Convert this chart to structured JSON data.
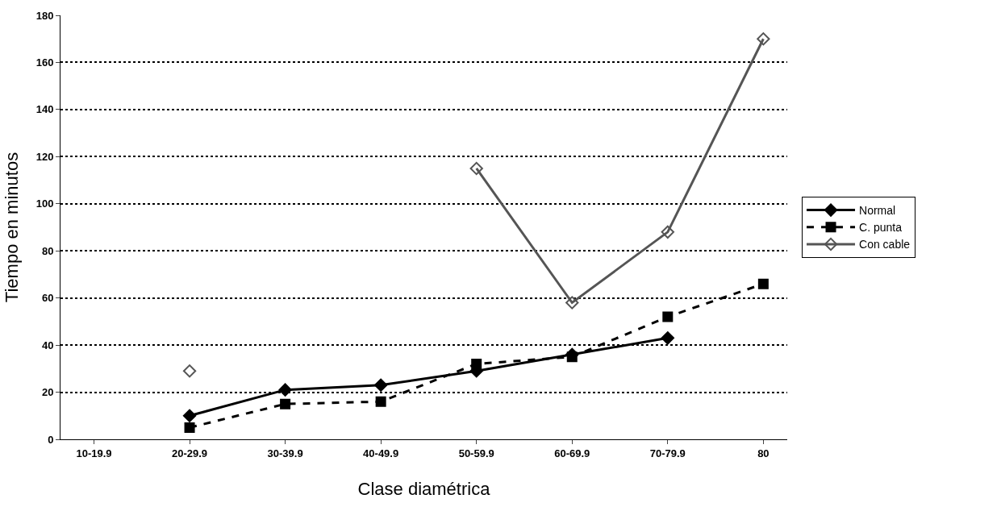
{
  "chart_data": {
    "type": "line",
    "xlabel": "Clase diamétrica",
    "ylabel": "Tiempo en minutos",
    "categories": [
      "10-19.9",
      "20-29.9",
      "30-39.9",
      "40-49.9",
      "50-59.9",
      "60-69.9",
      "70-79.9",
      "80"
    ],
    "series": [
      {
        "name": "Normal",
        "color": "#000000",
        "marker": "diamond",
        "line_style": "solid",
        "values": [
          null,
          10,
          21,
          23,
          29,
          36,
          43,
          null
        ]
      },
      {
        "name": "C. punta",
        "color": "#000000",
        "marker": "square",
        "line_style": "dashed",
        "values": [
          null,
          5,
          15,
          16,
          32,
          35,
          52,
          66
        ]
      },
      {
        "name": "Con cable",
        "color": "#555555",
        "marker": "diamond-open",
        "line_style": "solid",
        "values": [
          null,
          29,
          null,
          null,
          115,
          58,
          88,
          170
        ]
      }
    ],
    "ylim": [
      0,
      180
    ],
    "yticks": [
      0,
      20,
      40,
      60,
      80,
      100,
      120,
      140,
      160,
      180
    ],
    "grid": "y",
    "legend": "right"
  }
}
